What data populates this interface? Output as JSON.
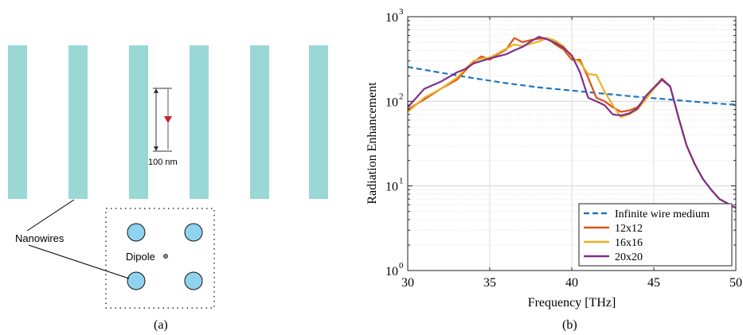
{
  "panel_a": {
    "caption": "(a)",
    "scale_label": "100 nm",
    "nanowires_label": "Nanowires",
    "dipole_label": "Dipole",
    "wire_color": "#99d8d4",
    "circle_color": "#8fd3f0",
    "dipole_arrow_color": "#c0272d"
  },
  "panel_b": {
    "caption": "(b)"
  },
  "chart_data": {
    "type": "line",
    "xlabel": "Frequency [THz]",
    "ylabel": "Radiation Enhancement",
    "xlim": [
      30,
      50
    ],
    "ylim": [
      1,
      1000
    ],
    "yscale": "log",
    "xticks": [
      "30",
      "35",
      "40",
      "45",
      "50"
    ],
    "yticks": [
      "10",
      "10",
      "10",
      "10"
    ],
    "ytick_exponents": [
      "0",
      "1",
      "2",
      "3"
    ],
    "grid": true,
    "legend_position": "bottom-right",
    "series": [
      {
        "name": "Infinite wire medium",
        "color": "#1f77c0",
        "dash": true,
        "x": [
          30,
          32,
          34,
          36,
          38,
          40,
          42,
          44,
          46,
          48,
          50
        ],
        "y": [
          255,
          218,
          188,
          164,
          146,
          134,
          123,
          113,
          105,
          97,
          91
        ]
      },
      {
        "name": "12x12",
        "color": "#d95319",
        "dash": false,
        "x": [
          30,
          31,
          32,
          33,
          33.5,
          34,
          34.5,
          35,
          35.5,
          36,
          36.5,
          37,
          37.5,
          38,
          38.5,
          39,
          39.5,
          40,
          40.5,
          41,
          41.5,
          42,
          42.5,
          43,
          43.5,
          44,
          44.5,
          45,
          45.5,
          46,
          46.5,
          47,
          47.5,
          48,
          48.5,
          49,
          49.5,
          50
        ],
        "y": [
          80,
          105,
          140,
          180,
          230,
          290,
          340,
          310,
          360,
          410,
          560,
          500,
          530,
          550,
          560,
          470,
          410,
          310,
          310,
          190,
          110,
          100,
          85,
          75,
          78,
          85,
          110,
          145,
          185,
          150,
          65,
          30,
          18,
          12,
          9,
          7,
          6.2,
          5.5
        ]
      },
      {
        "name": "16x16",
        "color": "#edb120",
        "dash": false,
        "x": [
          30,
          31,
          32,
          33,
          33.5,
          34,
          34.5,
          35,
          35.5,
          36,
          36.5,
          37,
          37.5,
          38,
          38.5,
          39,
          39.5,
          40,
          40.5,
          41,
          41.5,
          42,
          42.5,
          43,
          43.5,
          44,
          44.5,
          45,
          45.5,
          46,
          46.5,
          47,
          47.5,
          48,
          48.5,
          49,
          49.5,
          50
        ],
        "y": [
          75,
          110,
          140,
          190,
          240,
          300,
          320,
          330,
          370,
          420,
          470,
          450,
          480,
          510,
          560,
          520,
          450,
          330,
          290,
          210,
          205,
          130,
          90,
          65,
          70,
          80,
          105,
          140,
          180,
          148,
          65,
          30,
          18,
          12,
          9,
          7,
          6.2,
          5.5
        ]
      },
      {
        "name": "20x20",
        "color": "#7e2f8e",
        "dash": false,
        "x": [
          30,
          31,
          32,
          33,
          33.5,
          34,
          34.5,
          35,
          35.5,
          36,
          36.5,
          37,
          37.5,
          38,
          38.5,
          39,
          39.5,
          40,
          40.5,
          41,
          41.5,
          42,
          42.5,
          43,
          43.5,
          44,
          44.5,
          45,
          45.5,
          46,
          46.5,
          47,
          47.5,
          48,
          48.5,
          49,
          49.5,
          50
        ],
        "y": [
          85,
          140,
          170,
          220,
          240,
          280,
          300,
          320,
          340,
          360,
          400,
          440,
          510,
          580,
          540,
          490,
          430,
          350,
          220,
          110,
          100,
          90,
          70,
          68,
          72,
          82,
          115,
          145,
          180,
          150,
          65,
          30,
          18,
          12,
          9,
          7,
          6.2,
          5.5
        ]
      }
    ]
  }
}
